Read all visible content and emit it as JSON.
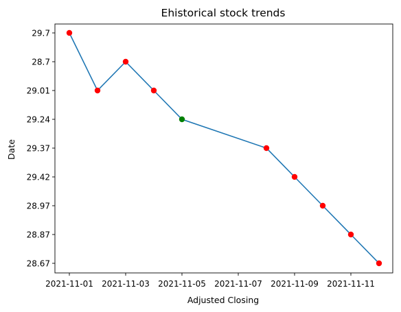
{
  "chart_data": {
    "type": "line",
    "title": "Ehistorical stock trends",
    "xlabel": "Adjusted Closing",
    "ylabel": "Date",
    "x_ticks": [
      "2021-11-01",
      "2021-11-03",
      "2021-11-05",
      "2021-11-07",
      "2021-11-09",
      "2021-11-11"
    ],
    "y_categories": [
      "29.7",
      "28.7",
      "29.01",
      "29.24",
      "29.37",
      "29.42",
      "28.97",
      "28.87",
      "28.67"
    ],
    "points": [
      {
        "x": "2021-11-01",
        "y": "29.7",
        "color": "#ff0000"
      },
      {
        "x": "2021-11-02",
        "y": "29.01",
        "color": "#ff0000"
      },
      {
        "x": "2021-11-03",
        "y": "28.7",
        "color": "#ff0000"
      },
      {
        "x": "2021-11-04",
        "y": "29.01",
        "color": "#ff0000"
      },
      {
        "x": "2021-11-05",
        "y": "29.24",
        "color": "#008000"
      },
      {
        "x": "2021-11-08",
        "y": "29.37",
        "color": "#ff0000"
      },
      {
        "x": "2021-11-09",
        "y": "29.42",
        "color": "#ff0000"
      },
      {
        "x": "2021-11-10",
        "y": "28.97",
        "color": "#ff0000"
      },
      {
        "x": "2021-11-11",
        "y": "28.87",
        "color": "#ff0000"
      },
      {
        "x": "2021-11-12",
        "y": "28.67",
        "color": "#ff0000"
      }
    ],
    "line_color": "#1f77b4",
    "grid": false,
    "legend": "none"
  }
}
